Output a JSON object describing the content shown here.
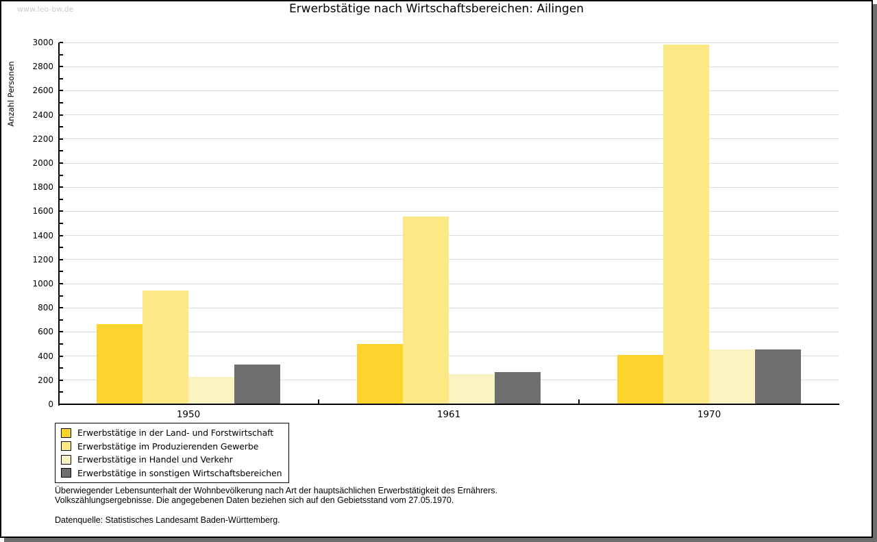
{
  "watermark": "www.leo-bw.de",
  "title": "Erwerbstätige nach Wirtschaftsbereichen: Ailingen",
  "chart_data": {
    "type": "bar",
    "title": "Erwerbstätige nach Wirtschaftsbereichen: Ailingen",
    "xlabel": "",
    "ylabel": "Anzahl Personen",
    "ylim": [
      0,
      3000
    ],
    "y_ticks": [
      0,
      200,
      400,
      600,
      800,
      1000,
      1200,
      1400,
      1600,
      1800,
      2000,
      2200,
      2400,
      2600,
      2800,
      3000
    ],
    "y_minor_step": 100,
    "grid": true,
    "legend_position": "bottom-left",
    "categories": [
      "1950",
      "1961",
      "1970"
    ],
    "series": [
      {
        "name": "Erwerbstätige in der Land- und Forstwirtschaft",
        "color": "#FCD42D",
        "values": [
          665,
          500,
          410
        ]
      },
      {
        "name": "Erwerbstätige im Produzierenden Gewerbe",
        "color": "#FCE885",
        "values": [
          945,
          1555,
          2985
        ]
      },
      {
        "name": "Erwerbstätige in Handel und Verkehr",
        "color": "#FCF3C2",
        "values": [
          225,
          250,
          455
        ]
      },
      {
        "name": "Erwerbstätige in sonstigen Wirtschaftsbereichen",
        "color": "#6E6E6E",
        "values": [
          330,
          265,
          455
        ]
      }
    ]
  },
  "footer": {
    "line1": "Überwiegender Lebensunterhalt der Wohnbevölkerung nach Art der hauptsächlichen Erwerbstätigkeit des Ernährers.",
    "line2": "Volkszählungsergebnisse. Die angegebenen Daten beziehen sich auf den Gebietsstand vom 27.05.1970.",
    "source": "Datenquelle: Statistisches Landesamt Baden-Württemberg."
  },
  "colors": {
    "shadow": "#6E6E6E",
    "gridline": "#DCDCDC",
    "watermark_text": "#CCCCCC",
    "axis": "#000000"
  }
}
